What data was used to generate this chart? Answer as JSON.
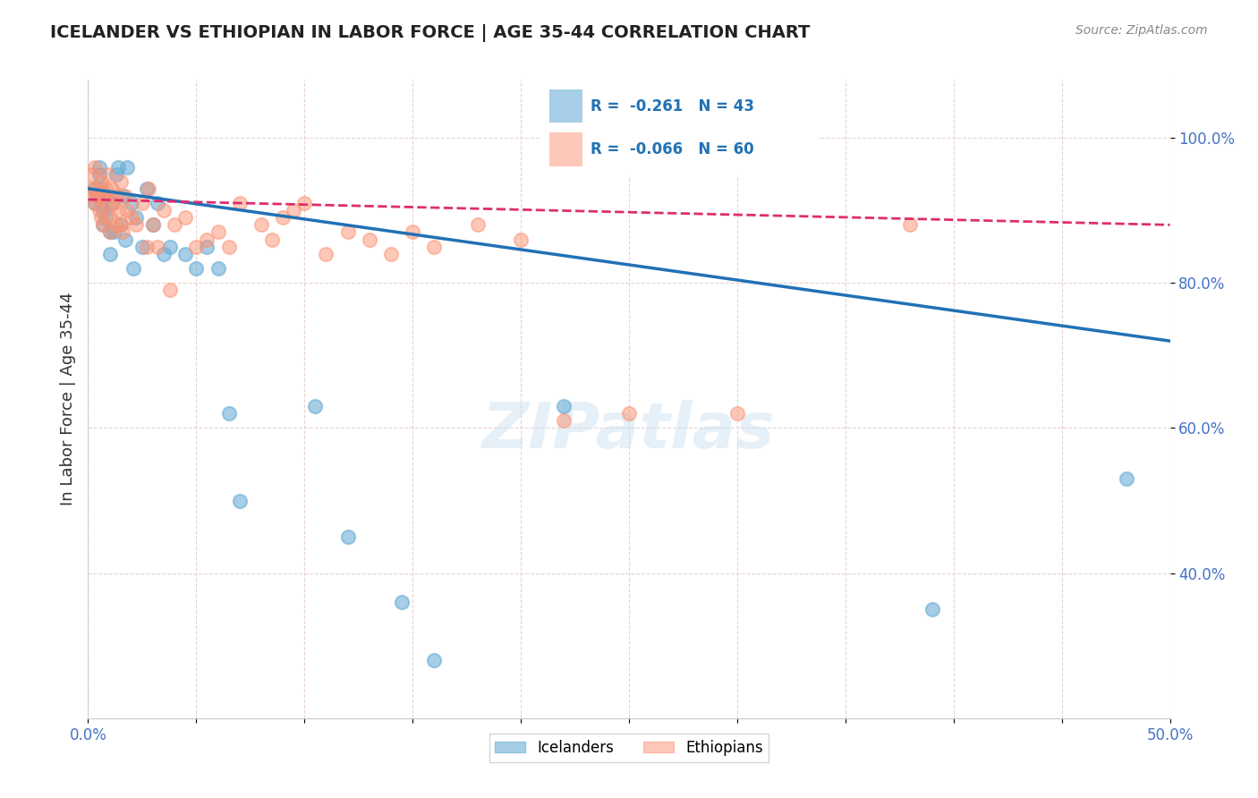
{
  "title": "ICELANDER VS ETHIOPIAN IN LABOR FORCE | AGE 35-44 CORRELATION CHART",
  "source": "Source: ZipAtlas.com",
  "xlabel_bottom": "",
  "ylabel": "In Labor Force | Age 35-44",
  "xlim": [
    0.0,
    0.5
  ],
  "ylim": [
    0.2,
    1.08
  ],
  "xticks": [
    0.0,
    0.05,
    0.1,
    0.15,
    0.2,
    0.25,
    0.3,
    0.35,
    0.4,
    0.45,
    0.5
  ],
  "xticklabels": [
    "0.0%",
    "",
    "",
    "",
    "",
    "",
    "",
    "",
    "",
    "",
    "50.0%"
  ],
  "yticks": [
    0.4,
    0.6,
    0.8,
    1.0
  ],
  "yticklabels": [
    "40.0%",
    "60.0%",
    "80.0%",
    "100.0%"
  ],
  "legend_blue_label": "Icelanders",
  "legend_pink_label": "Ethiopians",
  "r_blue": -0.261,
  "n_blue": 43,
  "r_pink": -0.066,
  "n_pink": 60,
  "blue_color": "#6baed6",
  "pink_color": "#fc9272",
  "blue_line_color": "#2171b5",
  "pink_line_color": "#de2d6e",
  "watermark": "ZIPatlas",
  "blue_scatter_x": [
    0.003,
    0.003,
    0.004,
    0.005,
    0.005,
    0.006,
    0.006,
    0.007,
    0.007,
    0.008,
    0.009,
    0.01,
    0.01,
    0.011,
    0.012,
    0.013,
    0.014,
    0.015,
    0.016,
    0.017,
    0.018,
    0.02,
    0.021,
    0.022,
    0.025,
    0.027,
    0.03,
    0.032,
    0.035,
    0.038,
    0.045,
    0.05,
    0.055,
    0.06,
    0.065,
    0.07,
    0.105,
    0.12,
    0.145,
    0.16,
    0.22,
    0.39,
    0.48
  ],
  "blue_scatter_y": [
    0.93,
    0.91,
    0.92,
    0.96,
    0.95,
    0.93,
    0.91,
    0.9,
    0.88,
    0.89,
    0.92,
    0.87,
    0.84,
    0.91,
    0.87,
    0.95,
    0.96,
    0.88,
    0.92,
    0.86,
    0.96,
    0.91,
    0.82,
    0.89,
    0.85,
    0.93,
    0.88,
    0.91,
    0.84,
    0.85,
    0.84,
    0.82,
    0.85,
    0.82,
    0.62,
    0.5,
    0.63,
    0.45,
    0.36,
    0.28,
    0.63,
    0.35,
    0.53
  ],
  "pink_scatter_x": [
    0.001,
    0.002,
    0.002,
    0.003,
    0.003,
    0.004,
    0.005,
    0.005,
    0.006,
    0.006,
    0.007,
    0.007,
    0.008,
    0.008,
    0.009,
    0.01,
    0.01,
    0.011,
    0.012,
    0.013,
    0.013,
    0.014,
    0.015,
    0.015,
    0.016,
    0.017,
    0.018,
    0.02,
    0.022,
    0.025,
    0.027,
    0.028,
    0.03,
    0.032,
    0.035,
    0.038,
    0.04,
    0.045,
    0.05,
    0.055,
    0.06,
    0.065,
    0.07,
    0.08,
    0.085,
    0.09,
    0.095,
    0.1,
    0.11,
    0.12,
    0.13,
    0.14,
    0.15,
    0.16,
    0.18,
    0.2,
    0.22,
    0.25,
    0.3,
    0.38
  ],
  "pink_scatter_y": [
    0.93,
    0.92,
    0.95,
    0.91,
    0.96,
    0.93,
    0.92,
    0.9,
    0.94,
    0.89,
    0.92,
    0.88,
    0.93,
    0.91,
    0.95,
    0.89,
    0.87,
    0.93,
    0.91,
    0.88,
    0.92,
    0.9,
    0.88,
    0.94,
    0.87,
    0.92,
    0.9,
    0.89,
    0.88,
    0.91,
    0.85,
    0.93,
    0.88,
    0.85,
    0.9,
    0.79,
    0.88,
    0.89,
    0.85,
    0.86,
    0.87,
    0.85,
    0.91,
    0.88,
    0.86,
    0.89,
    0.9,
    0.91,
    0.84,
    0.87,
    0.86,
    0.84,
    0.87,
    0.85,
    0.88,
    0.86,
    0.61,
    0.62,
    0.62,
    0.88
  ]
}
